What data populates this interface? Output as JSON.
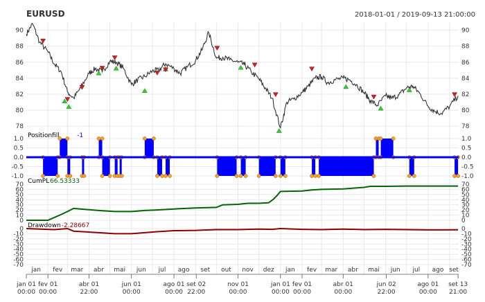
{
  "header": {
    "symbol": "EURUSD",
    "date_range": "2018-01-01 / 2019-09-13 21:00:00"
  },
  "colors": {
    "price_line": "#333333",
    "buy_marker": "#33cc33",
    "sell_marker": "#cc2222",
    "position_fill": "#0000ff",
    "position_marker": "#f0a030",
    "cumpl_line": "#006400",
    "drawdown_line": "#8b0000",
    "grid": "#e8e8e8"
  },
  "chart_data": [
    {
      "type": "line",
      "panel": "price",
      "title": "EURUSD",
      "ylim": [
        77.5,
        91.0
      ],
      "y_ticks": [
        78,
        80,
        82,
        84,
        86,
        88,
        90
      ],
      "y_tick_labels_left": [
        "78",
        "80",
        "82",
        "84",
        "86",
        "88",
        "90"
      ],
      "y_tick_labels_right": [
        "78",
        "80",
        "82",
        "84",
        "86",
        "88",
        "90"
      ],
      "series": [
        {
          "x": [
            "2018-01-01",
            "2018-01-10",
            "2018-01-20",
            "2018-02-01",
            "2018-02-10",
            "2018-02-20",
            "2018-03-01",
            "2018-03-10",
            "2018-03-20",
            "2018-04-01",
            "2018-04-10",
            "2018-04-20",
            "2018-05-01",
            "2018-05-10",
            "2018-05-20",
            "2018-06-01",
            "2018-06-10",
            "2018-06-20",
            "2018-07-01",
            "2018-07-10",
            "2018-07-20",
            "2018-08-01",
            "2018-08-10",
            "2018-08-20",
            "2018-09-01",
            "2018-09-10",
            "2018-09-20",
            "2018-10-01",
            "2018-10-10",
            "2018-10-20",
            "2018-11-01",
            "2018-11-10",
            "2018-11-20",
            "2018-12-01",
            "2018-12-10",
            "2018-12-20",
            "2019-01-01",
            "2019-01-10",
            "2019-01-20",
            "2019-02-01",
            "2019-02-10",
            "2019-02-20",
            "2019-03-01",
            "2019-03-10",
            "2019-03-20",
            "2019-04-01",
            "2019-04-10",
            "2019-04-20",
            "2019-05-01",
            "2019-05-10",
            "2019-05-20",
            "2019-06-01",
            "2019-06-10",
            "2019-06-20",
            "2019-07-01",
            "2019-07-10",
            "2019-07-20",
            "2019-08-01",
            "2019-08-10",
            "2019-08-20",
            "2019-09-01",
            "2019-09-13"
          ],
          "values": [
            89.5,
            90.8,
            88.5,
            87.3,
            85.8,
            84.8,
            82.3,
            81.5,
            82.8,
            84.6,
            85.2,
            84.8,
            86.1,
            86.0,
            85.3,
            83.2,
            83.8,
            84.2,
            84.9,
            85.0,
            85.8,
            85.2,
            84.6,
            85.4,
            86.2,
            87.5,
            89.7,
            86.5,
            86.6,
            86.3,
            86.0,
            85.7,
            84.8,
            83.9,
            82.8,
            81.5,
            77.8,
            81.0,
            81.4,
            82.2,
            83.0,
            84.0,
            84.2,
            83.4,
            83.8,
            84.0,
            83.8,
            83.2,
            82.2,
            81.2,
            80.6,
            81.8,
            81.5,
            81.9,
            82.8,
            83.0,
            82.1,
            80.5,
            79.9,
            79.6,
            80.5,
            81.8
          ]
        }
      ],
      "buy_signals": [
        {
          "x": "2018-02-25",
          "y": 81.5
        },
        {
          "x": "2018-03-03",
          "y": 80.8
        },
        {
          "x": "2018-04-15",
          "y": 85.0
        },
        {
          "x": "2018-05-10",
          "y": 85.6
        },
        {
          "x": "2018-06-20",
          "y": 82.8
        },
        {
          "x": "2018-07-20",
          "y": 85.5
        },
        {
          "x": "2018-11-05",
          "y": 85.7
        },
        {
          "x": "2018-12-30",
          "y": 77.8
        },
        {
          "x": "2019-04-05",
          "y": 83.3
        },
        {
          "x": "2019-05-25",
          "y": 80.6
        },
        {
          "x": "2019-07-05",
          "y": 82.9
        }
      ],
      "sell_signals": [
        {
          "x": "2018-01-25",
          "y": 88.3
        },
        {
          "x": "2018-03-01",
          "y": 81.0
        },
        {
          "x": "2018-03-22",
          "y": 82.5
        },
        {
          "x": "2018-04-20",
          "y": 84.9
        },
        {
          "x": "2018-05-08",
          "y": 86.2
        },
        {
          "x": "2018-07-08",
          "y": 84.3
        },
        {
          "x": "2018-07-20",
          "y": 84.7
        },
        {
          "x": "2018-10-02",
          "y": 87.4
        },
        {
          "x": "2018-11-25",
          "y": 85.3
        },
        {
          "x": "2018-12-25",
          "y": 81.6
        },
        {
          "x": "2019-02-15",
          "y": 84.8
        },
        {
          "x": "2019-05-15",
          "y": 81.3
        },
        {
          "x": "2019-09-08",
          "y": 81.6
        }
      ]
    },
    {
      "type": "area",
      "panel": "positionfill",
      "label": "Positionfill",
      "last_value": "-1",
      "ylim": [
        -1.0,
        1.0
      ],
      "y_tick_labels": [
        "1.0",
        "0.5",
        "0.0",
        "-0.5",
        "-1.0"
      ],
      "y_ticks": [
        1.0,
        0.5,
        0.0,
        -0.5,
        -1.0
      ],
      "segments": [
        {
          "start": "2018-01-25",
          "end": "2018-02-15",
          "value": -1
        },
        {
          "start": "2018-02-18",
          "end": "2018-03-01",
          "value": 1
        },
        {
          "start": "2018-03-01",
          "end": "2018-03-05",
          "value": -1
        },
        {
          "start": "2018-03-22",
          "end": "2018-03-25",
          "value": -1
        },
        {
          "start": "2018-04-15",
          "end": "2018-04-20",
          "value": 1
        },
        {
          "start": "2018-04-20",
          "end": "2018-05-01",
          "value": -1
        },
        {
          "start": "2018-05-08",
          "end": "2018-05-12",
          "value": -1
        },
        {
          "start": "2018-05-15",
          "end": "2018-05-18",
          "value": -1
        },
        {
          "start": "2018-06-20",
          "end": "2018-07-03",
          "value": 1
        },
        {
          "start": "2018-07-08",
          "end": "2018-07-15",
          "value": -1
        },
        {
          "start": "2018-07-20",
          "end": "2018-07-26",
          "value": -1
        },
        {
          "start": "2018-10-02",
          "end": "2018-10-30",
          "value": -1
        },
        {
          "start": "2018-11-05",
          "end": "2018-11-12",
          "value": -1
        },
        {
          "start": "2018-12-01",
          "end": "2018-12-25",
          "value": -1
        },
        {
          "start": "2019-01-01",
          "end": "2019-01-08",
          "value": -1
        },
        {
          "start": "2019-02-15",
          "end": "2019-02-20",
          "value": -1
        },
        {
          "start": "2019-02-25",
          "end": "2019-05-15",
          "value": -1
        },
        {
          "start": "2019-05-18",
          "end": "2019-05-22",
          "value": 1
        },
        {
          "start": "2019-05-25",
          "end": "2019-06-12",
          "value": 1
        },
        {
          "start": "2019-07-05",
          "end": "2019-07-12",
          "value": -1
        },
        {
          "start": "2019-09-08",
          "end": "2019-09-13",
          "value": -1
        }
      ]
    },
    {
      "type": "line",
      "panel": "cumpl",
      "label": "CumPL",
      "last_value": "66.53333",
      "ylim": [
        0,
        70
      ],
      "y_tick_labels": [
        "70",
        "60",
        "50",
        "40",
        "30",
        "20",
        "10",
        "0"
      ],
      "y_ticks": [
        70,
        60,
        50,
        40,
        30,
        20,
        10,
        0
      ],
      "x": [
        "2018-01-01",
        "2018-02-01",
        "2018-02-18",
        "2018-03-01",
        "2018-03-10",
        "2018-04-15",
        "2018-05-08",
        "2018-06-01",
        "2018-06-20",
        "2018-07-08",
        "2018-08-01",
        "2018-09-01",
        "2018-10-01",
        "2018-10-10",
        "2018-11-01",
        "2018-11-15",
        "2018-12-01",
        "2018-12-15",
        "2018-12-22",
        "2018-12-27",
        "2019-01-01",
        "2019-02-01",
        "2019-02-15",
        "2019-03-01",
        "2019-04-01",
        "2019-05-01",
        "2019-05-10",
        "2019-06-01",
        "2019-07-01",
        "2019-08-01",
        "2019-09-13"
      ],
      "values": [
        0,
        0,
        10,
        17,
        23,
        19,
        17,
        17,
        19,
        20,
        22,
        24,
        25,
        30,
        31,
        33,
        33,
        34,
        41,
        48,
        56,
        57,
        59,
        60,
        61,
        64,
        66,
        66,
        66.5,
        66.5,
        66.53333
      ]
    },
    {
      "type": "line",
      "panel": "drawdown",
      "label": "Drawdown",
      "last_value": "-2.28667",
      "ylim": [
        -70,
        0
      ],
      "y_tick_labels": [
        "0",
        "-10",
        "-20",
        "-30",
        "-40",
        "-50",
        "-60",
        "-70"
      ],
      "y_ticks": [
        0,
        -10,
        -20,
        -30,
        -40,
        -50,
        -60,
        -70
      ],
      "x": [
        "2018-01-01",
        "2018-02-10",
        "2018-03-01",
        "2018-03-10",
        "2018-04-15",
        "2018-05-08",
        "2018-06-01",
        "2018-06-20",
        "2018-07-08",
        "2018-08-01",
        "2018-09-01",
        "2018-10-01",
        "2018-11-01",
        "2018-12-01",
        "2018-12-20",
        "2019-01-01",
        "2019-02-01",
        "2019-03-01",
        "2019-04-01",
        "2019-05-01",
        "2019-06-01",
        "2019-07-01",
        "2019-08-01",
        "2019-09-13"
      ],
      "values": [
        0,
        -2,
        0,
        -5,
        -8,
        -10,
        -10,
        -8,
        -6,
        -4,
        -3.5,
        -2,
        -2,
        -1,
        -1.5,
        0,
        -1.5,
        -2,
        -1,
        -2,
        -1.5,
        -2,
        -2.5,
        -2.28667
      ]
    }
  ],
  "x_axis": {
    "month_labels": [
      "jan",
      "fev",
      "mar",
      "abr",
      "mai",
      "jun",
      "jul",
      "ago",
      "set",
      "out",
      "nov",
      "dez",
      "jan",
      "fev",
      "mar",
      "abr",
      "mai",
      "jun",
      "jul",
      "ago",
      "set"
    ],
    "month_label_dates": [
      "2018-01-15",
      "2018-02-15",
      "2018-03-15",
      "2018-04-15",
      "2018-05-15",
      "2018-06-15",
      "2018-07-15",
      "2018-08-15",
      "2018-09-15",
      "2018-10-15",
      "2018-11-15",
      "2018-12-15",
      "2019-01-15",
      "2019-02-15",
      "2019-03-15",
      "2019-04-15",
      "2019-05-15",
      "2019-06-15",
      "2019-07-15",
      "2019-08-15",
      "2019-09-07"
    ],
    "date_ticks": [
      {
        "date": "2018-01-01",
        "line1": "jan 01",
        "line2": "00:00"
      },
      {
        "date": "2018-02-01",
        "line1": "fev 01",
        "line2": "00:00"
      },
      {
        "date": "2018-04-01",
        "line1": "abr 01",
        "line2": "22:00"
      },
      {
        "date": "2018-06-01",
        "line1": "jun 01",
        "line2": "00:00"
      },
      {
        "date": "2018-08-01",
        "line1": "ago 01",
        "line2": "00:00"
      },
      {
        "date": "2018-09-02",
        "line1": "set 02",
        "line2": "22:00"
      },
      {
        "date": "2018-11-01",
        "line1": "nov 01",
        "line2": "00:00"
      },
      {
        "date": "2019-01-01",
        "line1": "jan 01",
        "line2": "00:00"
      },
      {
        "date": "2019-02-01",
        "line1": "fev 01",
        "line2": "00:00"
      },
      {
        "date": "2019-04-01",
        "line1": "abr 01",
        "line2": "00:00"
      },
      {
        "date": "2019-06-02",
        "line1": "jun 02",
        "line2": "22:00"
      },
      {
        "date": "2019-08-01",
        "line1": "ago 01",
        "line2": "00:00"
      },
      {
        "date": "2019-09-13",
        "line1": "set 13",
        "line2": "21:00"
      }
    ]
  }
}
